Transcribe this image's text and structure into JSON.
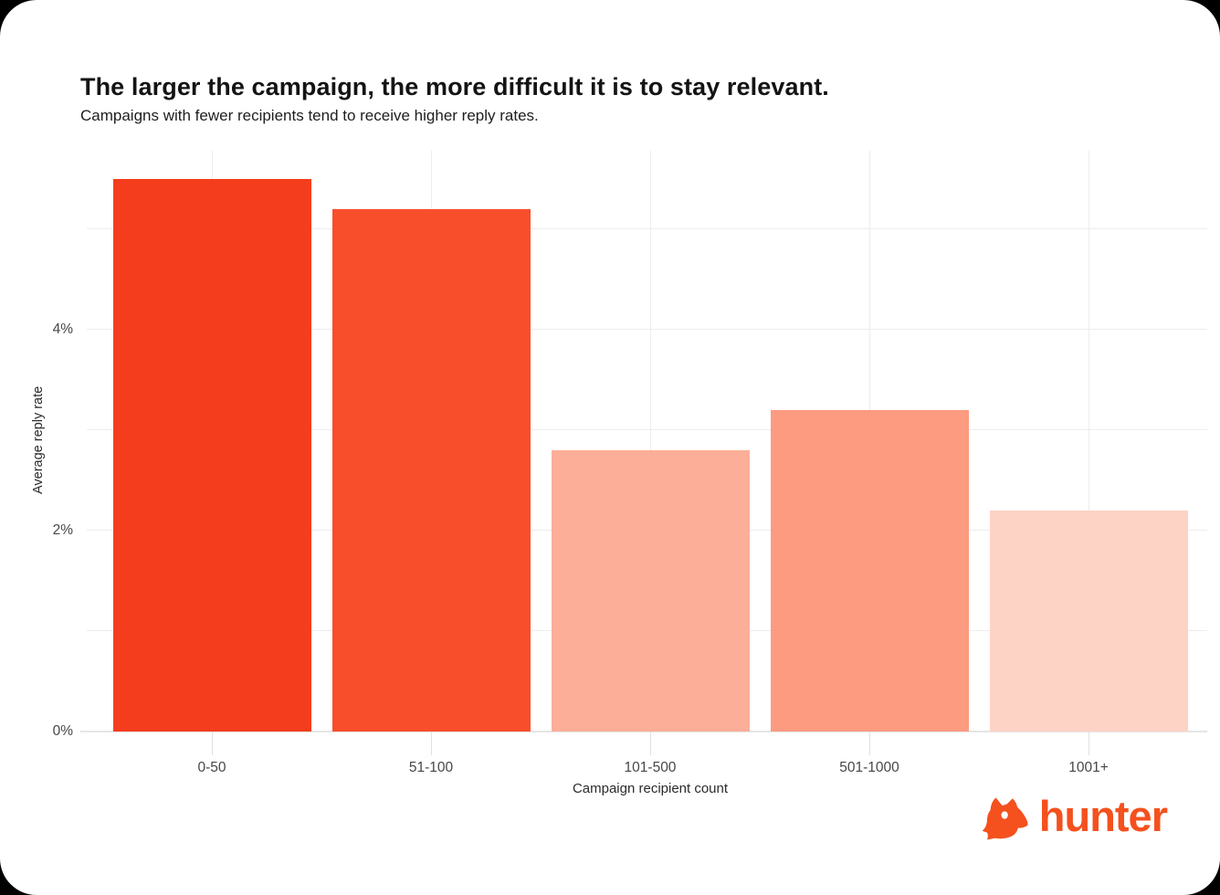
{
  "page": {
    "background": "#000000",
    "card_background": "#ffffff"
  },
  "chart_data": {
    "type": "bar",
    "title": "The larger the campaign, the more difficult it is to stay relevant.",
    "subtitle": "Campaigns with fewer recipients tend to receive higher reply rates.",
    "xlabel": "Campaign recipient count",
    "ylabel": "Average reply rate",
    "categories": [
      "0-50",
      "51-100",
      "101-500",
      "501-1000",
      "1001+"
    ],
    "values": [
      5.5,
      5.2,
      2.8,
      3.2,
      2.2
    ],
    "value_unit": "%",
    "ylim": [
      0,
      5.8
    ],
    "yticks": [
      {
        "value": 0,
        "label": "0%"
      },
      {
        "value": 2,
        "label": "2%"
      },
      {
        "value": 4,
        "label": "4%"
      }
    ],
    "gridlines_y": [
      1,
      2,
      3,
      4,
      5
    ],
    "grid": true,
    "legend_position": "none",
    "bar_colors": [
      "#F43D1D",
      "#F84E2B",
      "#FCAE98",
      "#FC9B80",
      "#FDD3C6"
    ]
  },
  "theme": {
    "grid_color": "#ededed",
    "axis_line_color": "#e5e5e5",
    "tick_color": "#e0e0e0",
    "title_color": "#141414",
    "subtitle_color": "#1e1e1e",
    "tick_label_color": "#474747",
    "axis_title_color": "#2b2b2b"
  },
  "branding": {
    "logo_text": "hunter",
    "logo_color": "#F4511E",
    "logo_icon": "fox-head-icon"
  }
}
